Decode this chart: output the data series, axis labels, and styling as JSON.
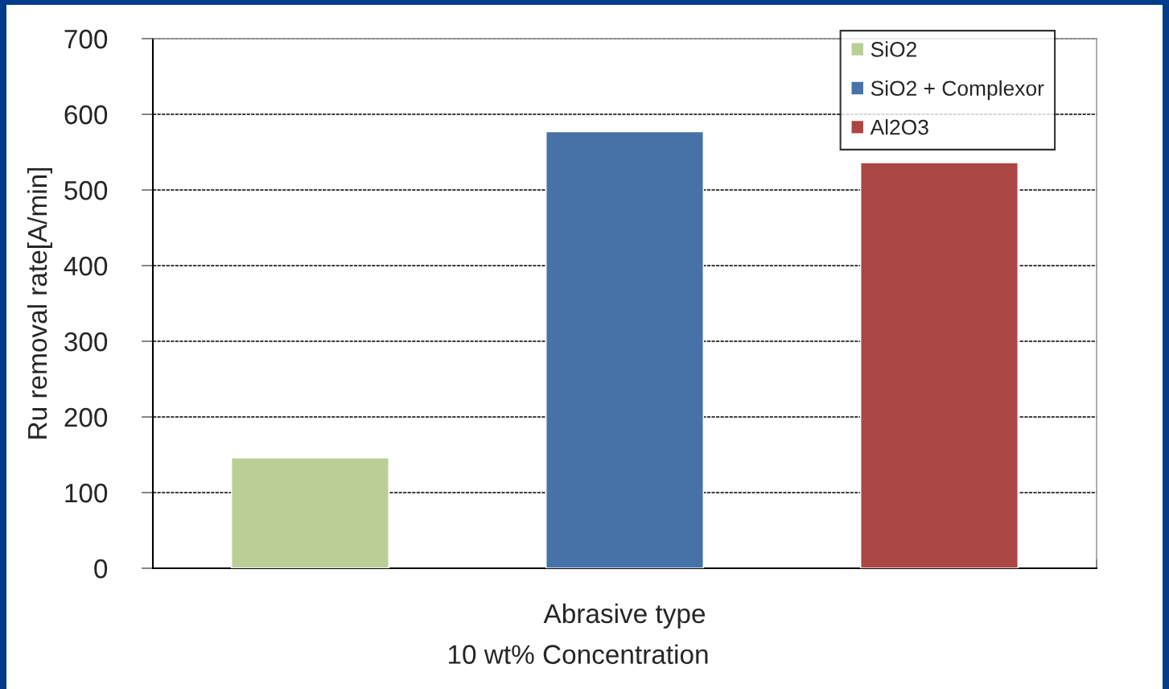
{
  "chart_data": {
    "type": "bar",
    "xlabel": "Abrasive type",
    "ylabel": "Ru removal rate[A/min]",
    "categories": [
      null
    ],
    "series": [
      {
        "name": "SiO2",
        "color": "#b9cf96",
        "values": [
          146
        ]
      },
      {
        "name": "SiO2 + Complexor",
        "color": "#4672a7",
        "values": [
          577
        ]
      },
      {
        "name": "Al2O3",
        "color": "#aa4643",
        "values": [
          536
        ]
      }
    ],
    "ylim": [
      0,
      700
    ],
    "yticks": [
      0,
      100,
      200,
      300,
      400,
      500,
      600,
      700
    ],
    "grid": "y",
    "legend": "top right",
    "annotations": [
      "10 wt% Concentration"
    ]
  }
}
